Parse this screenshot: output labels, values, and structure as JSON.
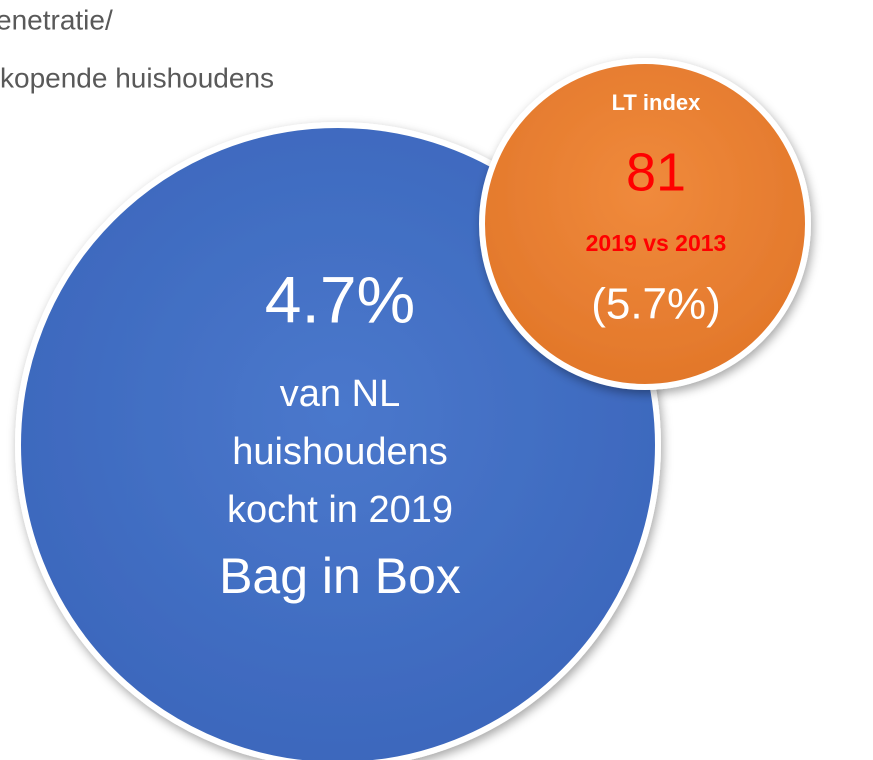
{
  "header": {
    "lines": [
      "enetratie/",
      "kopende huishoudens"
    ]
  },
  "main_circle": {
    "value": "4.7%",
    "lines": [
      "van NL",
      "huishoudens",
      "kocht in 2019"
    ],
    "product": "Bag in Box"
  },
  "index_circle": {
    "title": "LT index",
    "value": "81",
    "comparison": "2019 vs 2013",
    "previous": "(5.7%)"
  }
}
